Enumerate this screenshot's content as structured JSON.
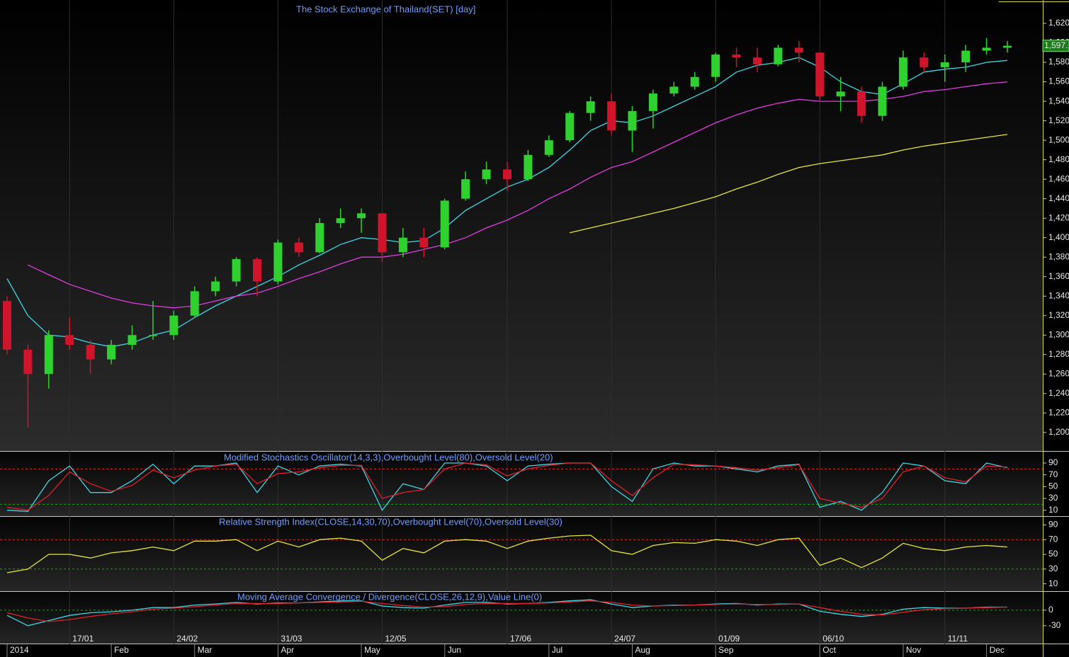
{
  "chart_data": [
    {
      "type": "candlestick",
      "title": "The Stock Exchange of Thailand(SET) [day]",
      "categories": [
        "2014",
        null,
        null,
        null,
        null,
        "Feb",
        null,
        null,
        null,
        "Mar",
        null,
        null,
        null,
        "Apr",
        null,
        null,
        null,
        "May",
        null,
        null,
        null,
        "Jun",
        null,
        null,
        null,
        null,
        "Jul",
        null,
        null,
        null,
        "Aug",
        null,
        null,
        null,
        "Sep",
        null,
        null,
        null,
        null,
        "Oct",
        null,
        null,
        null,
        "Nov",
        null,
        null,
        null,
        "Dec",
        null
      ],
      "date_labels": [
        null,
        null,
        null,
        "17/01",
        null,
        null,
        null,
        null,
        "24/02",
        null,
        null,
        null,
        null,
        "31/03",
        null,
        null,
        null,
        null,
        "12/05",
        null,
        null,
        null,
        null,
        null,
        "17/06",
        null,
        null,
        null,
        null,
        "24/07",
        null,
        null,
        null,
        null,
        "01/09",
        null,
        null,
        null,
        null,
        "06/10",
        null,
        null,
        null,
        null,
        null,
        "11/11",
        null,
        null,
        null
      ],
      "open": [
        1335,
        1285,
        1260,
        1300,
        1290,
        1275,
        1290,
        1300,
        1300,
        1320,
        1345,
        1355,
        1378,
        1355,
        1395,
        1385,
        1415,
        1420,
        1425,
        1385,
        1400,
        1390,
        1440,
        1460,
        1470,
        1460,
        1485,
        1500,
        1528,
        1540,
        1510,
        1530,
        1548,
        1555,
        1565,
        1588,
        1585,
        1578,
        1595,
        1590,
        1545,
        1550,
        1525,
        1555,
        1585,
        1575,
        1580,
        1592,
        1595
      ],
      "high": [
        1340,
        1290,
        1305,
        1318,
        1295,
        1295,
        1310,
        1335,
        1325,
        1350,
        1360,
        1380,
        1380,
        1398,
        1400,
        1420,
        1430,
        1430,
        1425,
        1410,
        1410,
        1440,
        1468,
        1478,
        1478,
        1490,
        1505,
        1530,
        1545,
        1548,
        1535,
        1552,
        1560,
        1570,
        1590,
        1595,
        1595,
        1598,
        1602,
        1590,
        1565,
        1555,
        1560,
        1592,
        1590,
        1588,
        1598,
        1605,
        1602
      ],
      "low": [
        1280,
        1205,
        1245,
        1285,
        1260,
        1270,
        1285,
        1295,
        1295,
        1318,
        1340,
        1350,
        1340,
        1352,
        1380,
        1384,
        1410,
        1405,
        1375,
        1380,
        1380,
        1388,
        1438,
        1455,
        1448,
        1458,
        1483,
        1498,
        1520,
        1505,
        1488,
        1512,
        1545,
        1552,
        1560,
        1575,
        1570,
        1576,
        1580,
        1540,
        1530,
        1518,
        1520,
        1552,
        1570,
        1560,
        1570,
        1588,
        1590
      ],
      "close": [
        1285,
        1260,
        1300,
        1290,
        1275,
        1290,
        1300,
        1300,
        1320,
        1345,
        1355,
        1378,
        1355,
        1395,
        1385,
        1415,
        1420,
        1425,
        1385,
        1400,
        1390,
        1438,
        1460,
        1470,
        1460,
        1485,
        1500,
        1528,
        1540,
        1510,
        1530,
        1548,
        1555,
        1565,
        1588,
        1585,
        1578,
        1595,
        1590,
        1545,
        1550,
        1525,
        1555,
        1585,
        1575,
        1580,
        1592,
        1595,
        1597
      ],
      "up_color": "#2fd12f",
      "down_color": "#d0142c",
      "series": [
        {
          "color": "#3fd6e6",
          "values": [
            1358,
            1320,
            1300,
            1298,
            1292,
            1288,
            1292,
            1300,
            1305,
            1318,
            1330,
            1340,
            1350,
            1360,
            1372,
            1382,
            1393,
            1400,
            1398,
            1395,
            1397,
            1410,
            1428,
            1440,
            1452,
            1460,
            1472,
            1490,
            1510,
            1520,
            1518,
            1525,
            1535,
            1545,
            1555,
            1570,
            1577,
            1580,
            1585,
            1575,
            1560,
            1550,
            1547,
            1558,
            1570,
            1573,
            1575,
            1580,
            1582
          ]
        },
        {
          "color": "#e23ce2",
          "values": [
            null,
            1372,
            1362,
            1352,
            1345,
            1338,
            1333,
            1330,
            1328,
            1330,
            1335,
            1340,
            1343,
            1350,
            1358,
            1365,
            1373,
            1380,
            1380,
            1383,
            1388,
            1393,
            1400,
            1410,
            1418,
            1428,
            1440,
            1450,
            1462,
            1472,
            1478,
            1488,
            1498,
            1508,
            1518,
            1526,
            1533,
            1538,
            1542,
            1540,
            1540,
            1540,
            1542,
            1545,
            1550,
            1552,
            1555,
            1558,
            1560
          ]
        },
        {
          "color": "#e6e640",
          "values": [
            null,
            null,
            null,
            null,
            null,
            null,
            null,
            null,
            null,
            null,
            null,
            null,
            null,
            null,
            null,
            null,
            null,
            null,
            null,
            null,
            null,
            null,
            null,
            null,
            null,
            null,
            null,
            1405,
            1410,
            1415,
            1420,
            1425,
            1430,
            1436,
            1442,
            1450,
            1457,
            1465,
            1472,
            1476,
            1479,
            1482,
            1485,
            1490,
            1494,
            1497,
            1500,
            1503,
            1506
          ]
        }
      ],
      "last_price_label": "1,597.",
      "ylim": [
        1181,
        1644
      ],
      "yticks": [
        {
          "value": 1200,
          "label": "1,200"
        },
        {
          "value": 1220,
          "label": "1,220"
        },
        {
          "value": 1240,
          "label": "1,240"
        },
        {
          "value": 1260,
          "label": "1,260"
        },
        {
          "value": 1280,
          "label": "1,280"
        },
        {
          "value": 1300,
          "label": "1,300"
        },
        {
          "value": 1320,
          "label": "1,320"
        },
        {
          "value": 1340,
          "label": "1,340"
        },
        {
          "value": 1360,
          "label": "1,360"
        },
        {
          "value": 1380,
          "label": "1,380"
        },
        {
          "value": 1400,
          "label": "1,400"
        },
        {
          "value": 1420,
          "label": "1,420"
        },
        {
          "value": 1440,
          "label": "1,440"
        },
        {
          "value": 1460,
          "label": "1,460"
        },
        {
          "value": 1480,
          "label": "1,480"
        },
        {
          "value": 1500,
          "label": "1,500"
        },
        {
          "value": 1520,
          "label": "1,520"
        },
        {
          "value": 1540,
          "label": "1,540"
        },
        {
          "value": 1560,
          "label": "1,560"
        },
        {
          "value": 1580,
          "label": "1,580"
        },
        {
          "value": 1600,
          "label": "1,600"
        },
        {
          "value": 1620,
          "label": "1,620"
        }
      ]
    },
    {
      "type": "line",
      "title": "Modified Stochastics Oscillator(14,3,3),Overbought Level(80),Oversold Level(20)",
      "series": [
        {
          "color": "#3fd6e6",
          "values": [
            10,
            8,
            60,
            85,
            40,
            40,
            60,
            88,
            55,
            85,
            85,
            90,
            40,
            85,
            70,
            85,
            88,
            85,
            10,
            55,
            45,
            90,
            90,
            85,
            60,
            85,
            88,
            90,
            90,
            50,
            25,
            80,
            90,
            85,
            85,
            80,
            75,
            85,
            88,
            15,
            25,
            10,
            40,
            90,
            85,
            60,
            55,
            90,
            82
          ]
        },
        {
          "color": "#e0202a",
          "values": [
            15,
            10,
            35,
            75,
            55,
            42,
            52,
            78,
            65,
            78,
            85,
            88,
            55,
            72,
            75,
            82,
            86,
            86,
            30,
            40,
            45,
            80,
            90,
            87,
            68,
            80,
            86,
            90,
            90,
            60,
            35,
            65,
            88,
            87,
            85,
            82,
            78,
            82,
            87,
            30,
            22,
            15,
            30,
            75,
            85,
            65,
            58,
            85,
            83
          ]
        }
      ],
      "levels": [
        {
          "value": 80,
          "color": "#d03030"
        },
        {
          "value": 20,
          "color": "#20a020"
        }
      ],
      "ylim": [
        0,
        108
      ],
      "yticks": [
        10,
        30,
        50,
        70,
        90
      ]
    },
    {
      "type": "line",
      "title": "Relative Strength Index(CLOSE,14,30,70),Overbought Level(70),Oversold Level(30)",
      "series": [
        {
          "color": "#e6e640",
          "values": [
            25,
            30,
            50,
            50,
            45,
            52,
            55,
            60,
            55,
            68,
            68,
            70,
            55,
            68,
            60,
            70,
            72,
            68,
            42,
            58,
            52,
            68,
            70,
            68,
            58,
            68,
            72,
            75,
            76,
            55,
            50,
            62,
            66,
            65,
            70,
            68,
            62,
            70,
            72,
            35,
            45,
            32,
            45,
            65,
            58,
            55,
            60,
            62,
            60
          ]
        }
      ],
      "levels": [
        {
          "value": 70,
          "color": "#d03030"
        },
        {
          "value": 30,
          "color": "#20a020"
        }
      ],
      "ylim": [
        0,
        100
      ],
      "yticks": [
        10,
        30,
        50,
        70,
        90
      ]
    },
    {
      "type": "line",
      "title": "Moving Average Convergence / Divergence(CLOSE,26,12,9),Value Line(0)",
      "series": [
        {
          "color": "#3fd6e6",
          "values": [
            -10,
            -30,
            -20,
            -10,
            -5,
            -3,
            0,
            5,
            5,
            10,
            12,
            15,
            12,
            14,
            14,
            16,
            18,
            18,
            8,
            5,
            4,
            10,
            15,
            15,
            12,
            13,
            15,
            18,
            20,
            12,
            5,
            8,
            10,
            10,
            12,
            13,
            10,
            12,
            12,
            -2,
            -8,
            -12,
            -8,
            2,
            5,
            4,
            4,
            6,
            6
          ]
        },
        {
          "color": "#e0202a",
          "values": [
            -5,
            -15,
            -22,
            -18,
            -12,
            -7,
            -3,
            2,
            4,
            7,
            10,
            13,
            13,
            13,
            14,
            15,
            16,
            17,
            13,
            9,
            6,
            7,
            11,
            13,
            13,
            13,
            14,
            16,
            18,
            15,
            10,
            8,
            9,
            10,
            11,
            12,
            11,
            11,
            12,
            5,
            -2,
            -8,
            -9,
            -4,
            1,
            3,
            4,
            5,
            6
          ]
        }
      ],
      "levels": [
        {
          "value": 0,
          "color": "#20a020"
        }
      ],
      "ylim": [
        -63,
        34
      ],
      "yticks": [
        -30,
        0
      ]
    }
  ]
}
